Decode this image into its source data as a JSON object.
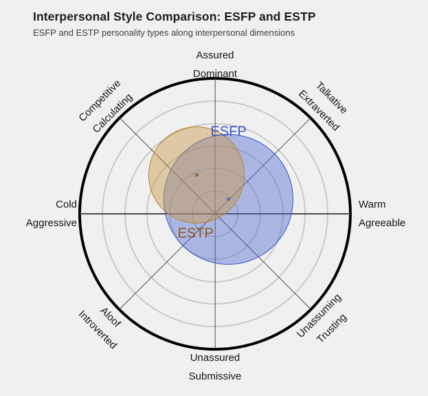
{
  "header": {
    "title": "Interpersonal Style Comparison: ESFP and ESTP",
    "subtitle": "ESFP and ESTP personality types along interpersonal dimensions"
  },
  "chart_data": {
    "type": "circumplex-scatter",
    "title": "Interpersonal Style Comparison: ESFP and ESTP",
    "subtitle": "ESFP and ESTP personality types along interpersonal dimensions",
    "background": "#f0f0f0",
    "grid_color": "#c9c9c9",
    "spoke_color": "#4d4d4d",
    "outer_ring_color": "#000000",
    "radial_axis": {
      "min": 0,
      "max": 3,
      "gridlines": [
        0.5,
        1.0,
        1.5,
        2.0,
        2.5
      ],
      "outer": 3.0
    },
    "axes": [
      {
        "angle_deg": 90,
        "lines": [
          "Assured",
          "Dominant"
        ],
        "orientation": "horizontal"
      },
      {
        "angle_deg": 45,
        "lines": [
          "Talkative",
          "Extraverted"
        ],
        "orientation": "rotated"
      },
      {
        "angle_deg": 0,
        "lines": [
          "Warm",
          "Agreeable"
        ],
        "orientation": "horizontal"
      },
      {
        "angle_deg": -45,
        "lines": [
          "Unassuming",
          "Trusting"
        ],
        "orientation": "rotated"
      },
      {
        "angle_deg": -90,
        "lines": [
          "Unassured",
          "Submissive"
        ],
        "orientation": "horizontal"
      },
      {
        "angle_deg": -135,
        "lines": [
          "Aloof",
          "Introverted"
        ],
        "orientation": "rotated"
      },
      {
        "angle_deg": 180,
        "lines": [
          "Cold",
          "Aggressive"
        ],
        "orientation": "horizontal"
      },
      {
        "angle_deg": 135,
        "lines": [
          "Competitive",
          "Calculating"
        ],
        "orientation": "rotated"
      }
    ],
    "series": [
      {
        "name": "ESFP",
        "center": {
          "x": 0.3,
          "y": 0.32
        },
        "radius": 1.44,
        "fill": "rgba(77,104,208,0.42)",
        "stroke": "#3452c6",
        "dot_color": "rgba(52,82,198,0.65)",
        "label_color": "#3a56c4",
        "label_pos": {
          "x": 0.3,
          "y": 1.81
        }
      },
      {
        "name": "ESTP",
        "center": {
          "x": -0.41,
          "y": 0.86
        },
        "radius": 1.07,
        "fill": "rgba(199,152,72,0.45)",
        "stroke": "#b5832f",
        "dot_color": "rgba(141,88,35,0.8)",
        "label_color": "#8f561b",
        "label_pos": {
          "x": -0.43,
          "y": -0.44
        }
      }
    ]
  }
}
